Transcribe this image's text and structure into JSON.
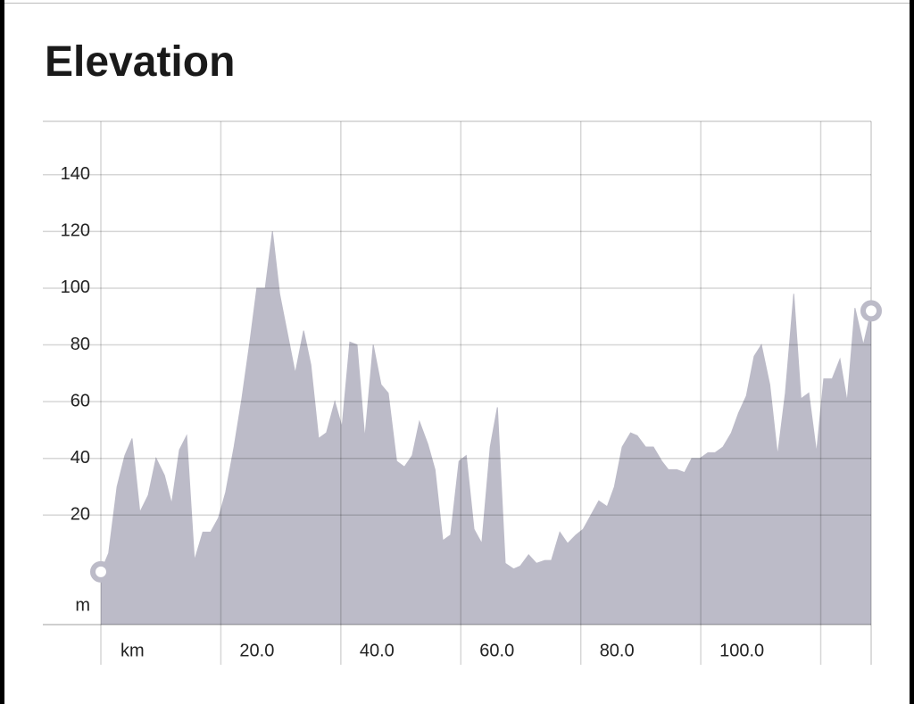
{
  "chart_data": {
    "type": "area",
    "title": "Elevation",
    "x_label": "km",
    "y_label": "m",
    "color": "#bcbbc8",
    "xlim": [
      0,
      128.4
    ],
    "ylim": [
      -18.6,
      158.8
    ],
    "xticks": [
      {
        "value": 0,
        "label": null
      },
      {
        "value": 20,
        "label": "20.0"
      },
      {
        "value": 40,
        "label": "40.0"
      },
      {
        "value": 60,
        "label": "60.0"
      },
      {
        "value": 80,
        "label": "80.0"
      },
      {
        "value": 100,
        "label": "100.0"
      },
      {
        "value": 120,
        "label": null
      }
    ],
    "yticks": [
      20,
      40,
      60,
      80,
      100,
      120,
      140
    ],
    "grid": true,
    "x": [
      0,
      1.3,
      2.7,
      4.0,
      5.2,
      6.5,
      7.9,
      9.2,
      10.6,
      11.8,
      13.1,
      14.3,
      15.6,
      17.0,
      18.3,
      19.6,
      20.8,
      22.2,
      23.5,
      24.9,
      26.0,
      27.4,
      28.6,
      29.8,
      31.1,
      32.4,
      33.8,
      35.0,
      36.3,
      37.6,
      39.0,
      40.2,
      41.5,
      42.7,
      44.0,
      45.4,
      46.7,
      47.9,
      49.3,
      50.6,
      51.9,
      53.1,
      54.5,
      55.7,
      57.0,
      58.3,
      59.7,
      60.9,
      62.2,
      63.5,
      64.9,
      66.1,
      67.4,
      68.8,
      69.9,
      71.3,
      72.6,
      74.0,
      75.1,
      76.5,
      77.8,
      79.2,
      80.4,
      81.7,
      83.0,
      84.4,
      85.6,
      86.9,
      88.3,
      89.4,
      90.8,
      92.1,
      93.5,
      94.6,
      96.0,
      97.3,
      98.5,
      99.9,
      101.2,
      102.4,
      103.7,
      105.1,
      106.3,
      107.6,
      108.9,
      110.1,
      111.5,
      112.8,
      114.1,
      115.5,
      116.7,
      118.0,
      119.3,
      120.5,
      121.9,
      123.2,
      124.4,
      125.7,
      127.1,
      128.4
    ],
    "values": [
      0,
      6.6,
      30,
      41,
      47,
      21,
      27,
      40,
      34,
      24,
      43,
      48,
      4,
      14,
      14,
      19,
      28,
      44,
      61,
      82,
      100,
      100,
      120,
      98,
      84,
      70,
      85,
      73,
      47,
      49,
      60,
      51,
      81,
      80,
      47,
      80,
      66,
      63,
      39,
      37,
      41,
      53,
      45,
      36,
      11,
      13,
      39,
      41,
      15,
      10,
      44,
      58,
      3,
      1,
      2,
      6,
      3,
      4,
      4,
      14,
      10,
      13,
      15,
      20,
      25,
      23,
      30,
      44,
      49,
      48,
      44,
      44,
      39,
      36,
      36,
      35,
      40,
      40,
      42,
      42,
      44,
      49,
      56,
      62,
      76,
      80,
      66,
      41,
      63,
      98,
      61,
      63,
      42,
      68,
      68,
      75,
      60,
      93,
      80,
      92
    ]
  }
}
